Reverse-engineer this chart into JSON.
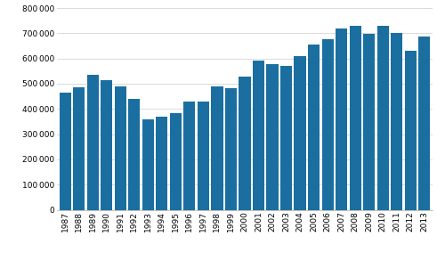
{
  "years": [
    1987,
    1988,
    1989,
    1990,
    1991,
    1992,
    1993,
    1994,
    1995,
    1996,
    1997,
    1998,
    1999,
    2000,
    2001,
    2002,
    2003,
    2004,
    2005,
    2006,
    2007,
    2008,
    2009,
    2010,
    2011,
    2012,
    2013
  ],
  "values": [
    465000,
    485000,
    535000,
    515000,
    490000,
    440000,
    360000,
    370000,
    385000,
    428000,
    428000,
    490000,
    483000,
    530000,
    592000,
    578000,
    570000,
    608000,
    655000,
    678000,
    720000,
    728000,
    698000,
    728000,
    703000,
    630000,
    688000
  ],
  "bar_color": "#1a6fa0",
  "ylim": [
    0,
    800000
  ],
  "yticks": [
    0,
    100000,
    200000,
    300000,
    400000,
    500000,
    600000,
    700000,
    800000
  ],
  "background_color": "#ffffff",
  "grid_color": "#cccccc",
  "bar_width": 0.85,
  "tick_fontsize": 6.5
}
